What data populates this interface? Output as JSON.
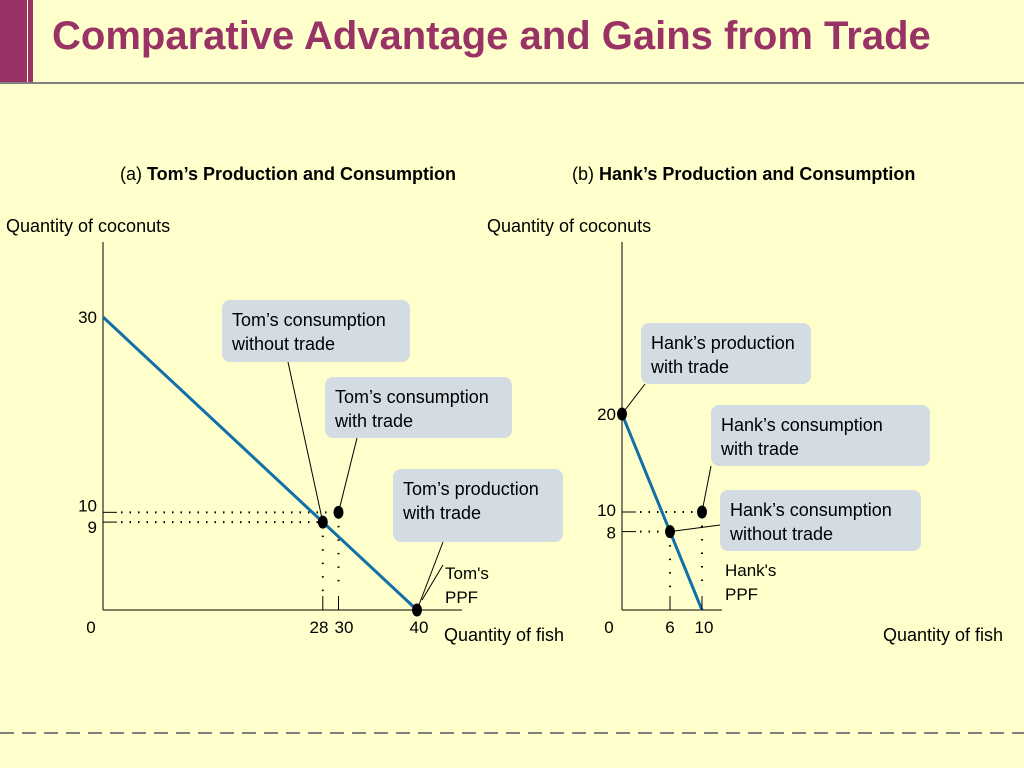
{
  "slide": {
    "title": "Comparative Advantage and Gains from Trade"
  },
  "panels": [
    {
      "prefix": "(a) ",
      "title": "Tom’s Production and Consumption"
    },
    {
      "prefix": "(b) ",
      "title": "Hank’s Production and Consumption"
    }
  ],
  "colors": {
    "title": "#993366",
    "ppf_line": "#1170A8",
    "background": "#FFFFCC",
    "callout": "#D3DCE3"
  },
  "chart_data": [
    {
      "type": "line",
      "panel": "a",
      "ylabel": "Quantity of coconuts",
      "xlabel": "Quantity of fish",
      "xlim": [
        0,
        40
      ],
      "ylim": [
        0,
        30
      ],
      "x_ticks": [
        "0",
        "28",
        "30",
        "40"
      ],
      "y_ticks": [
        "30",
        "10",
        "9"
      ],
      "series": [
        {
          "name": "Tom's PPF",
          "x": [
            0,
            40
          ],
          "y": [
            30,
            0
          ]
        }
      ],
      "points": [
        {
          "label": "Tom’s consumption without trade",
          "x": 28,
          "y": 9
        },
        {
          "label": "Tom’s consumption with trade",
          "x": 30,
          "y": 10
        },
        {
          "label": "Tom’s production with trade",
          "x": 40,
          "y": 0
        }
      ],
      "annotations": [
        "Tom’s consumption without trade",
        "Tom’s consumption with trade",
        "Tom’s production with trade",
        "Tom's PPF"
      ]
    },
    {
      "type": "line",
      "panel": "b",
      "ylabel": "Quantity of coconuts",
      "xlabel": "Quantity of fish",
      "xlim": [
        0,
        10
      ],
      "ylim": [
        0,
        20
      ],
      "x_ticks": [
        "0",
        "6",
        "10"
      ],
      "y_ticks": [
        "20",
        "10",
        "8"
      ],
      "series": [
        {
          "name": "Hank's PPF",
          "x": [
            0,
            10
          ],
          "y": [
            20,
            0
          ]
        }
      ],
      "points": [
        {
          "label": "Hank’s production with trade",
          "x": 0,
          "y": 20
        },
        {
          "label": "Hank’s consumption with trade",
          "x": 10,
          "y": 10
        },
        {
          "label": "Hank’s consumption without trade",
          "x": 6,
          "y": 8
        }
      ],
      "annotations": [
        "Hank’s production with trade",
        "Hank’s consumption with trade",
        "Hank’s consumption without trade",
        "Hank's PPF"
      ]
    }
  ],
  "callouts": {
    "tom_without": [
      "Tom’s consumption",
      "without trade"
    ],
    "tom_with": [
      "Tom’s consumption",
      "with trade"
    ],
    "tom_prod": [
      "Tom’s production",
      "with trade"
    ],
    "hank_prod": [
      "Hank’s production",
      "with trade"
    ],
    "hank_with": [
      "Hank’s consumption",
      "with trade"
    ],
    "hank_without": [
      "Hank’s consumption",
      "without trade"
    ]
  },
  "ppf_labels": {
    "tom": [
      "Tom's",
      "PPF"
    ],
    "hank": [
      "Hank's",
      "PPF"
    ]
  }
}
